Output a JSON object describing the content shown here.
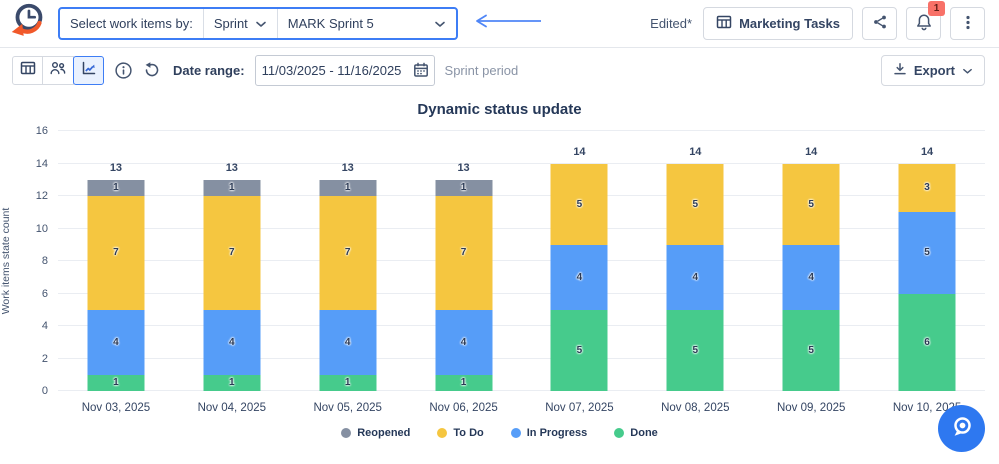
{
  "header": {
    "selector_label": "Select work items by:",
    "selector_mode": "Sprint",
    "selector_value": "MARK Sprint 5",
    "edited": "Edited*",
    "board_button": "Marketing Tasks",
    "notification_badge": "1"
  },
  "toolbar": {
    "date_range_label": "Date range:",
    "date_range_value": "11/03/2025 - 11/16/2025",
    "date_range_hint": "Sprint period",
    "export_label": "Export"
  },
  "colors": {
    "accent": "#3D7DF5",
    "fab": "#2E78F0",
    "badge_bg": "#F87168"
  },
  "chart_data": {
    "type": "bar",
    "stacked": true,
    "title": "Dynamic status update",
    "ylabel": "Work items state count",
    "xlabel": "",
    "ylim": [
      0,
      16
    ],
    "ytick_step": 2,
    "grid": true,
    "legend_position": "bottom",
    "categories": [
      "Nov 03, 2025",
      "Nov 04, 2025",
      "Nov 05, 2025",
      "Nov 06, 2025",
      "Nov 07, 2025",
      "Nov 08, 2025",
      "Nov 09, 2025",
      "Nov 10, 2025"
    ],
    "series": [
      {
        "name": "Done",
        "color": "#46CB8C",
        "values": [
          1,
          1,
          1,
          1,
          5,
          5,
          5,
          6
        ]
      },
      {
        "name": "In Progress",
        "color": "#569DF8",
        "values": [
          4,
          4,
          4,
          4,
          4,
          4,
          4,
          5
        ]
      },
      {
        "name": "To Do",
        "color": "#F5C640",
        "values": [
          7,
          7,
          7,
          7,
          5,
          5,
          5,
          3
        ]
      },
      {
        "name": "Reopened",
        "color": "#8590A2",
        "values": [
          1,
          1,
          1,
          1,
          0,
          0,
          0,
          0
        ]
      }
    ],
    "totals": [
      13,
      13,
      13,
      13,
      14,
      14,
      14,
      14
    ],
    "legend_order": [
      "Reopened",
      "To Do",
      "In Progress",
      "Done"
    ]
  }
}
